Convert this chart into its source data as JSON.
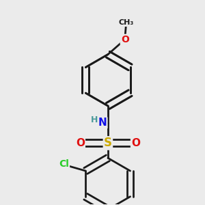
{
  "background_color": "#ebebeb",
  "bond_color": "#1a1a1a",
  "bond_width": 2.0,
  "atom_colors": {
    "C": "#1a1a1a",
    "H": "#4a9a9a",
    "N": "#1010e8",
    "O": "#e01010",
    "S": "#ccaa00",
    "Cl": "#28cc28"
  },
  "font_size": 11,
  "fig_size": [
    3.0,
    3.0
  ],
  "dpi": 100
}
